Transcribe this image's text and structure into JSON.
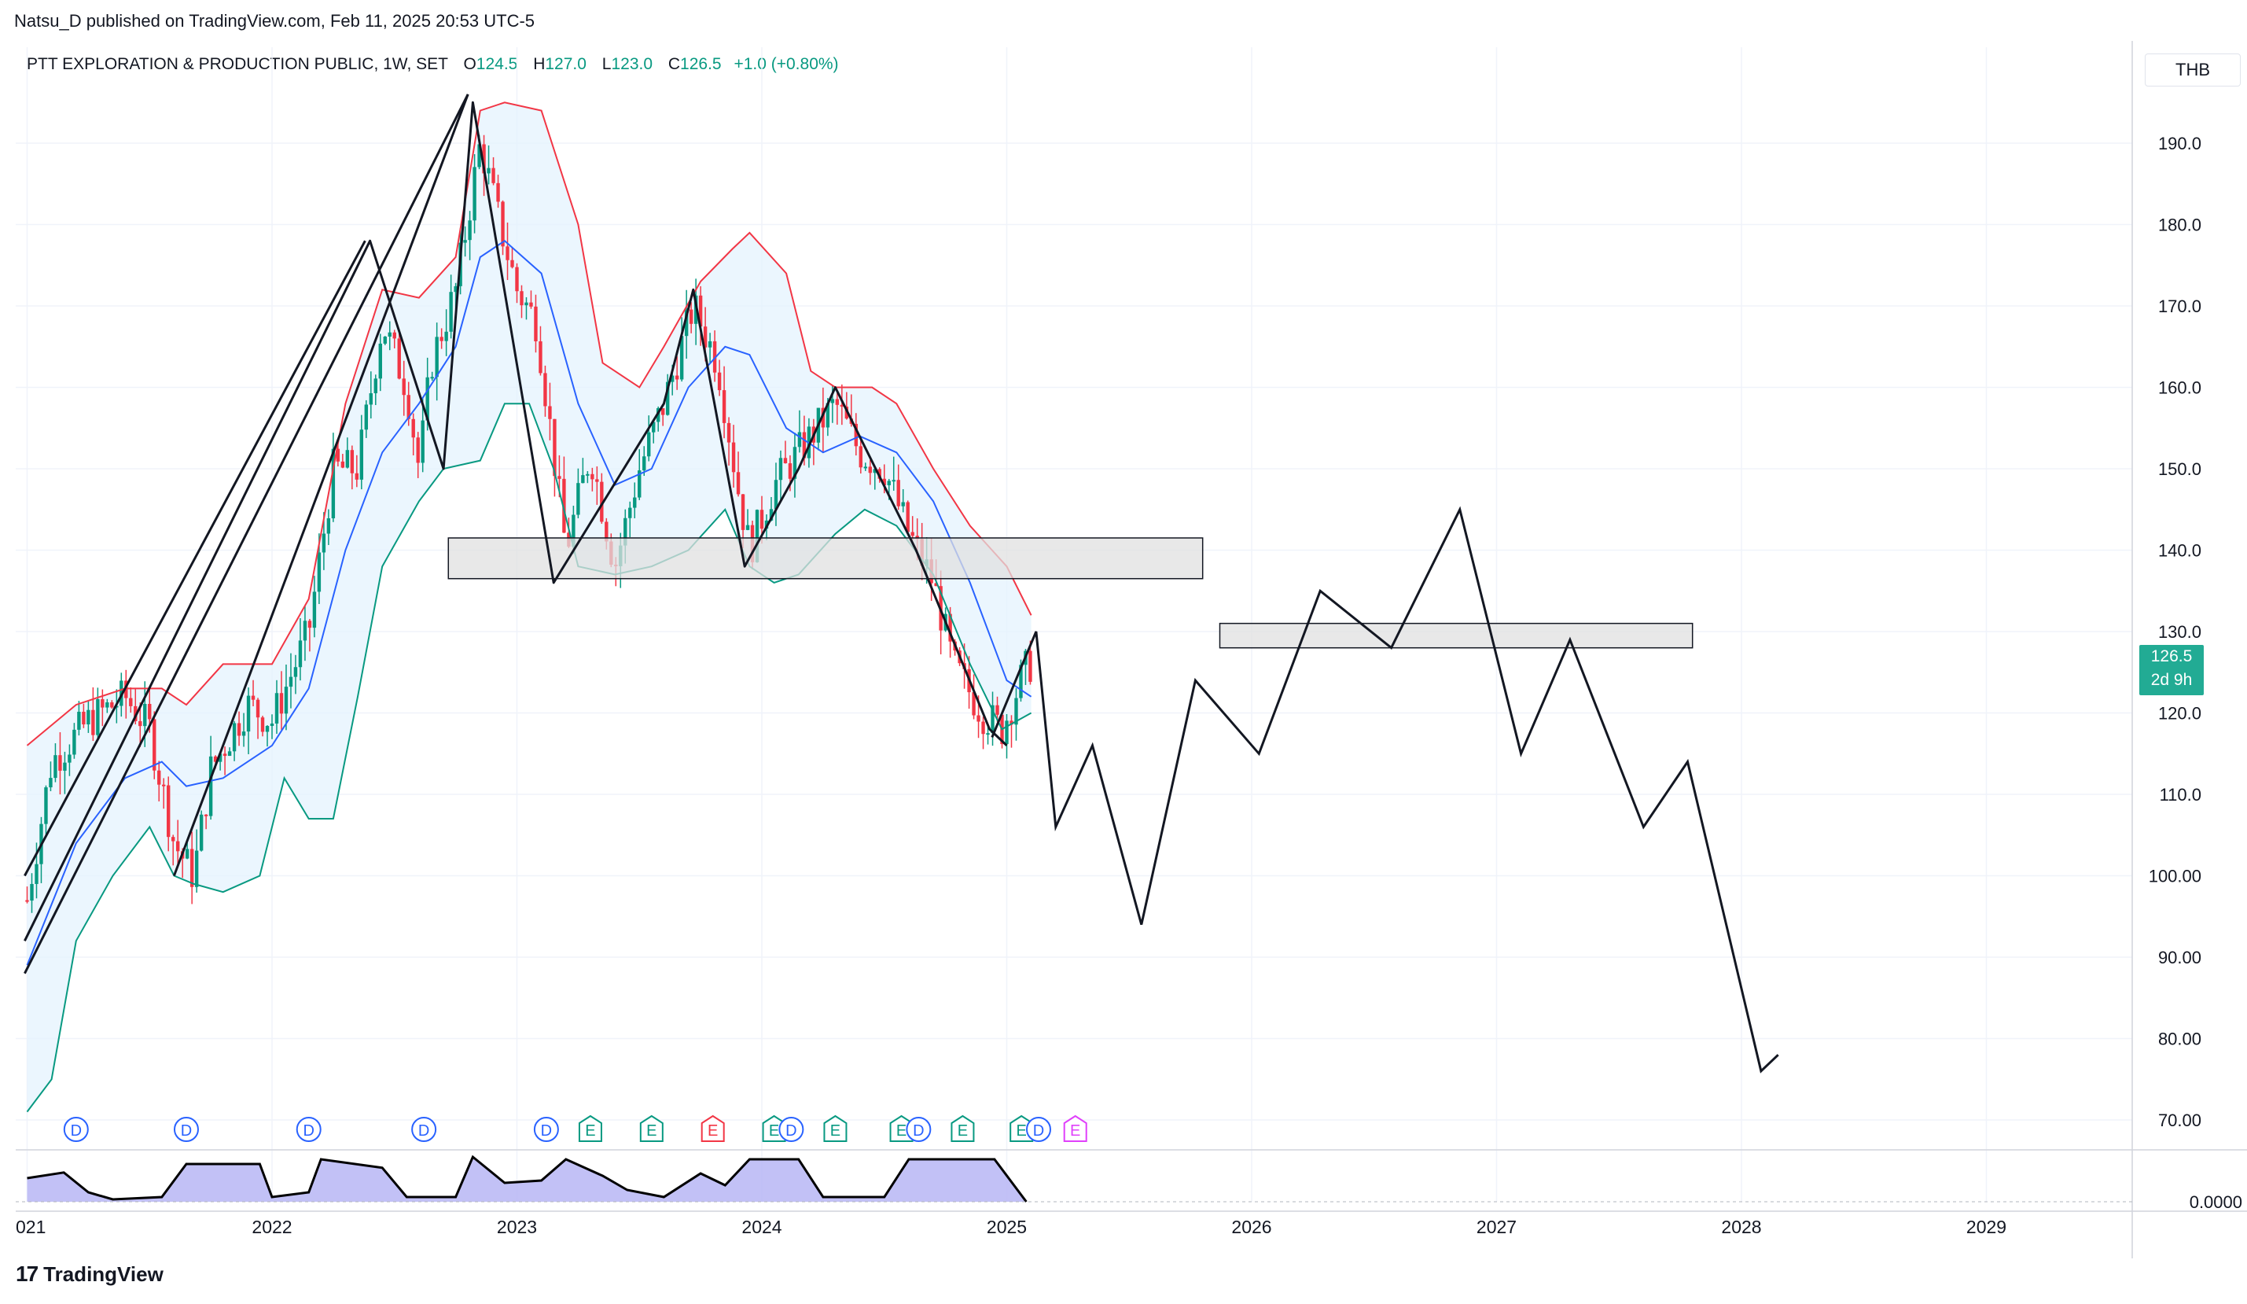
{
  "header": {
    "published_text": "Natsu_D published on TradingView.com, Feb 11, 2025 20:53 UTC-5",
    "symbol_text": "PTT EXPLORATION & PRODUCTION PUBLIC, 1W, SET",
    "o_label": "O",
    "o_value": "124.5",
    "h_label": "H",
    "h_value": "127.0",
    "l_label": "L",
    "l_value": "123.0",
    "c_label": "C",
    "c_value": "126.5",
    "change": "+1.0 (+0.80%)"
  },
  "price_scale": {
    "currency": "THB",
    "last_price": "126.5",
    "countdown": "2d 9h",
    "ticks": [
      "190.0",
      "180.0",
      "170.0",
      "160.0",
      "150.0",
      "140.0",
      "130.0",
      "120.0",
      "110.0",
      "100.00",
      "90.00",
      "80.00",
      "70.00"
    ],
    "indicator_tick": "0.0000"
  },
  "time_axis": {
    "labels": [
      "021",
      "2022",
      "2023",
      "2024",
      "2025",
      "2026",
      "2027",
      "2028",
      "2029"
    ]
  },
  "brand": {
    "name": "TradingView"
  },
  "colors": {
    "up": "#089981",
    "down": "#f23645",
    "bb_upper": "#f23645",
    "bb_lower": "#089981",
    "bb_mid": "#2962ff",
    "bb_fill": "#e3f2fd",
    "drawing": "#131722",
    "zone_fill": "#e0e0e0",
    "osc_fill": "#b7b6f5",
    "dividend": "#2962ff",
    "earnings": "#089981",
    "earnings_red": "#f23645",
    "earnings_magenta": "#e040fb"
  },
  "events": [
    {
      "type": "dividend",
      "label": "D",
      "t": 2021.2
    },
    {
      "type": "dividend",
      "label": "D",
      "t": 2021.65
    },
    {
      "type": "dividend",
      "label": "D",
      "t": 2022.15
    },
    {
      "type": "dividend",
      "label": "D",
      "t": 2022.62
    },
    {
      "type": "dividend",
      "label": "D",
      "t": 2023.12
    },
    {
      "type": "earnings",
      "label": "E",
      "t": 2023.3
    },
    {
      "type": "earnings",
      "label": "E",
      "t": 2023.55
    },
    {
      "type": "earnings_red",
      "label": "E",
      "t": 2023.8
    },
    {
      "type": "earnings",
      "label": "E",
      "t": 2024.05
    },
    {
      "type": "dividend",
      "label": "D",
      "t": 2024.12
    },
    {
      "type": "earnings",
      "label": "E",
      "t": 2024.3
    },
    {
      "type": "earnings",
      "label": "E",
      "t": 2024.57
    },
    {
      "type": "dividend",
      "label": "D",
      "t": 2024.64
    },
    {
      "type": "earnings",
      "label": "E",
      "t": 2024.82
    },
    {
      "type": "earnings",
      "label": "E",
      "t": 2025.06
    },
    {
      "type": "dividend",
      "label": "D",
      "t": 2025.13
    },
    {
      "type": "earnings_magenta",
      "label": "E",
      "t": 2025.28
    }
  ],
  "chart_data": {
    "type": "candlestick",
    "title": "PTT EXPLORATION & PRODUCTION PUBLIC, 1W, SET",
    "ylim": [
      64,
      198
    ],
    "xlim": [
      2020.99,
      2029.56
    ],
    "grid": true,
    "last_ohlc": {
      "open": 124.5,
      "high": 127.0,
      "low": 123.0,
      "close": 126.5
    },
    "price_path": [
      [
        2021.0,
        97
      ],
      [
        2021.1,
        114
      ],
      [
        2021.25,
        119
      ],
      [
        2021.4,
        122
      ],
      [
        2021.5,
        118
      ],
      [
        2021.6,
        104
      ],
      [
        2021.68,
        100
      ],
      [
        2021.75,
        113
      ],
      [
        2021.9,
        121
      ],
      [
        2022.0,
        119
      ],
      [
        2022.15,
        130
      ],
      [
        2022.25,
        150
      ],
      [
        2022.35,
        150
      ],
      [
        2022.45,
        168
      ],
      [
        2022.55,
        160
      ],
      [
        2022.6,
        150
      ],
      [
        2022.65,
        163
      ],
      [
        2022.75,
        172
      ],
      [
        2022.85,
        190
      ],
      [
        2022.93,
        180
      ],
      [
        2023.0,
        172
      ],
      [
        2023.08,
        168
      ],
      [
        2023.2,
        140
      ],
      [
        2023.3,
        152
      ],
      [
        2023.4,
        138
      ],
      [
        2023.5,
        150
      ],
      [
        2023.6,
        158
      ],
      [
        2023.72,
        170
      ],
      [
        2023.82,
        163
      ],
      [
        2023.9,
        148
      ],
      [
        2023.95,
        140
      ],
      [
        2024.05,
        148
      ],
      [
        2024.15,
        152
      ],
      [
        2024.3,
        158
      ],
      [
        2024.4,
        152
      ],
      [
        2024.5,
        150
      ],
      [
        2024.6,
        142
      ],
      [
        2024.7,
        136
      ],
      [
        2024.78,
        126
      ],
      [
        2024.9,
        120
      ],
      [
        2024.98,
        118
      ],
      [
        2025.07,
        125
      ],
      [
        2025.11,
        126.5
      ]
    ],
    "bollinger_upper": [
      [
        2021.0,
        116
      ],
      [
        2021.2,
        121
      ],
      [
        2021.4,
        123
      ],
      [
        2021.55,
        123
      ],
      [
        2021.65,
        121
      ],
      [
        2021.8,
        126
      ],
      [
        2022.0,
        126
      ],
      [
        2022.15,
        134
      ],
      [
        2022.3,
        158
      ],
      [
        2022.45,
        172
      ],
      [
        2022.6,
        171
      ],
      [
        2022.75,
        176
      ],
      [
        2022.85,
        194
      ],
      [
        2022.95,
        195
      ],
      [
        2023.1,
        194
      ],
      [
        2023.25,
        180
      ],
      [
        2023.35,
        163
      ],
      [
        2023.5,
        160
      ],
      [
        2023.6,
        165
      ],
      [
        2023.75,
        173
      ],
      [
        2023.88,
        177
      ],
      [
        2023.95,
        179
      ],
      [
        2024.1,
        174
      ],
      [
        2024.2,
        162
      ],
      [
        2024.3,
        160
      ],
      [
        2024.45,
        160
      ],
      [
        2024.55,
        158
      ],
      [
        2024.7,
        150
      ],
      [
        2024.85,
        143
      ],
      [
        2025.0,
        138
      ],
      [
        2025.1,
        132
      ]
    ],
    "bollinger_mid": [
      [
        2021.0,
        89
      ],
      [
        2021.2,
        104
      ],
      [
        2021.4,
        112
      ],
      [
        2021.55,
        114
      ],
      [
        2021.65,
        111
      ],
      [
        2021.8,
        112
      ],
      [
        2022.0,
        116
      ],
      [
        2022.15,
        123
      ],
      [
        2022.3,
        140
      ],
      [
        2022.45,
        152
      ],
      [
        2022.6,
        158
      ],
      [
        2022.75,
        165
      ],
      [
        2022.85,
        176
      ],
      [
        2022.95,
        178
      ],
      [
        2023.1,
        174
      ],
      [
        2023.25,
        158
      ],
      [
        2023.4,
        148
      ],
      [
        2023.55,
        150
      ],
      [
        2023.7,
        160
      ],
      [
        2023.85,
        165
      ],
      [
        2023.95,
        164
      ],
      [
        2024.1,
        155
      ],
      [
        2024.25,
        152
      ],
      [
        2024.4,
        154
      ],
      [
        2024.55,
        152
      ],
      [
        2024.7,
        146
      ],
      [
        2024.85,
        136
      ],
      [
        2025.0,
        124
      ],
      [
        2025.1,
        122
      ]
    ],
    "bollinger_lower": [
      [
        2021.0,
        71
      ],
      [
        2021.1,
        75
      ],
      [
        2021.2,
        92
      ],
      [
        2021.35,
        100
      ],
      [
        2021.5,
        106
      ],
      [
        2021.6,
        100
      ],
      [
        2021.68,
        99
      ],
      [
        2021.8,
        98
      ],
      [
        2021.95,
        100
      ],
      [
        2022.05,
        112
      ],
      [
        2022.15,
        107
      ],
      [
        2022.25,
        107
      ],
      [
        2022.35,
        122
      ],
      [
        2022.45,
        138
      ],
      [
        2022.6,
        146
      ],
      [
        2022.7,
        150
      ],
      [
        2022.85,
        151
      ],
      [
        2022.95,
        158
      ],
      [
        2023.05,
        158
      ],
      [
        2023.15,
        150
      ],
      [
        2023.25,
        138
      ],
      [
        2023.4,
        137
      ],
      [
        2023.55,
        138
      ],
      [
        2023.7,
        140
      ],
      [
        2023.85,
        145
      ],
      [
        2023.95,
        138
      ],
      [
        2024.05,
        136
      ],
      [
        2024.15,
        137
      ],
      [
        2024.3,
        142
      ],
      [
        2024.42,
        145
      ],
      [
        2024.55,
        143
      ],
      [
        2024.7,
        137
      ],
      [
        2024.85,
        126
      ],
      [
        2024.98,
        118
      ],
      [
        2025.1,
        120
      ]
    ],
    "drawings": {
      "historical_zigzag": [
        [
          2020.99,
          92
        ],
        [
          2022.4,
          178
        ],
        [
          2022.7,
          150
        ],
        [
          2022.82,
          195
        ],
        [
          2023.15,
          136
        ],
        [
          2023.6,
          158
        ],
        [
          2023.72,
          172
        ],
        [
          2023.93,
          138
        ],
        [
          2024.15,
          150
        ],
        [
          2024.3,
          160
        ],
        [
          2024.63,
          140
        ],
        [
          2024.93,
          118
        ],
        [
          2025.0,
          116
        ]
      ],
      "extended_lines": [
        [
          [
            2020.99,
            88
          ],
          [
            2022.8,
            196
          ]
        ],
        [
          [
            2020.99,
            100
          ],
          [
            2022.38,
            178
          ]
        ],
        [
          [
            2021.6,
            100
          ],
          [
            2022.8,
            196
          ]
        ]
      ],
      "projection_path": [
        [
          2024.94,
          117
        ],
        [
          2025.05,
          125
        ],
        [
          2025.12,
          130
        ],
        [
          2025.2,
          106
        ],
        [
          2025.35,
          116
        ],
        [
          2025.55,
          94
        ],
        [
          2025.77,
          124
        ],
        [
          2026.03,
          115
        ],
        [
          2026.28,
          135
        ],
        [
          2026.57,
          128
        ],
        [
          2026.85,
          145
        ],
        [
          2027.1,
          115
        ],
        [
          2027.3,
          129
        ],
        [
          2027.6,
          106
        ],
        [
          2027.78,
          114
        ],
        [
          2028.08,
          76
        ],
        [
          2028.15,
          78
        ]
      ],
      "zones": [
        {
          "t0": 2022.72,
          "t1": 2025.8,
          "p0": 136.5,
          "p1": 141.5
        },
        {
          "t0": 2025.87,
          "t1": 2027.8,
          "p0": 128,
          "p1": 131
        }
      ]
    },
    "oscillator": {
      "zero_label": "0.0000",
      "profile": [
        [
          2021.0,
          0.5
        ],
        [
          2021.15,
          0.62
        ],
        [
          2021.25,
          0.2
        ],
        [
          2021.35,
          0.05
        ],
        [
          2021.55,
          0.1
        ],
        [
          2021.65,
          0.8
        ],
        [
          2021.95,
          0.8
        ],
        [
          2022.0,
          0.1
        ],
        [
          2022.15,
          0.2
        ],
        [
          2022.2,
          0.9
        ],
        [
          2022.45,
          0.72
        ],
        [
          2022.55,
          0.1
        ],
        [
          2022.75,
          0.1
        ],
        [
          2022.82,
          0.95
        ],
        [
          2022.95,
          0.4
        ],
        [
          2023.1,
          0.45
        ],
        [
          2023.2,
          0.9
        ],
        [
          2023.35,
          0.55
        ],
        [
          2023.45,
          0.25
        ],
        [
          2023.6,
          0.1
        ],
        [
          2023.75,
          0.6
        ],
        [
          2023.85,
          0.35
        ],
        [
          2023.95,
          0.9
        ],
        [
          2024.15,
          0.9
        ],
        [
          2024.25,
          0.1
        ],
        [
          2024.5,
          0.1
        ],
        [
          2024.6,
          0.9
        ],
        [
          2024.95,
          0.9
        ],
        [
          2025.08,
          0.0
        ]
      ]
    }
  }
}
